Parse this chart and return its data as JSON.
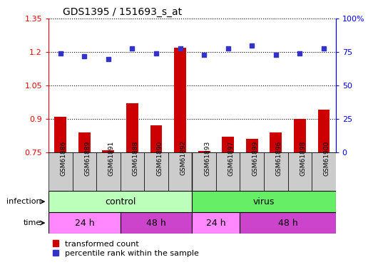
{
  "title": "GDS1395 / 151693_s_at",
  "samples": [
    "GSM61886",
    "GSM61889",
    "GSM61891",
    "GSM61888",
    "GSM61890",
    "GSM61892",
    "GSM61893",
    "GSM61897",
    "GSM61899",
    "GSM61896",
    "GSM61898",
    "GSM61900"
  ],
  "transformed_count": [
    0.91,
    0.84,
    0.76,
    0.97,
    0.87,
    1.22,
    0.755,
    0.82,
    0.81,
    0.84,
    0.9,
    0.94
  ],
  "percentile_rank": [
    74,
    72,
    70,
    78,
    74,
    78,
    73,
    78,
    80,
    73,
    74,
    78
  ],
  "ylim_left": [
    0.75,
    1.35
  ],
  "ylim_right": [
    0,
    100
  ],
  "yticks_left": [
    0.75,
    0.9,
    1.05,
    1.2,
    1.35
  ],
  "yticks_right": [
    0,
    25,
    50,
    75,
    100
  ],
  "ytick_labels_left": [
    "0.75",
    "0.9",
    "1.05",
    "1.2",
    "1.35"
  ],
  "ytick_labels_right": [
    "0",
    "25",
    "50",
    "75",
    "100%"
  ],
  "bar_color": "#cc0000",
  "dot_color": "#3333cc",
  "infection_control_color": "#bbffbb",
  "infection_virus_color": "#66ee66",
  "time_24h_color": "#ff88ff",
  "time_48h_color": "#cc44cc",
  "sample_bg_color": "#cccccc",
  "label_infection": "infection",
  "label_time": "time",
  "control_label": "control",
  "virus_label": "virus",
  "time_labels": [
    "24 h",
    "48 h",
    "24 h",
    "48 h"
  ],
  "control_samples": 6,
  "virus_samples": 6,
  "control_24h": 3,
  "control_48h": 3,
  "virus_24h": 2,
  "virus_48h": 4,
  "legend_red": "transformed count",
  "legend_blue": "percentile rank within the sample"
}
